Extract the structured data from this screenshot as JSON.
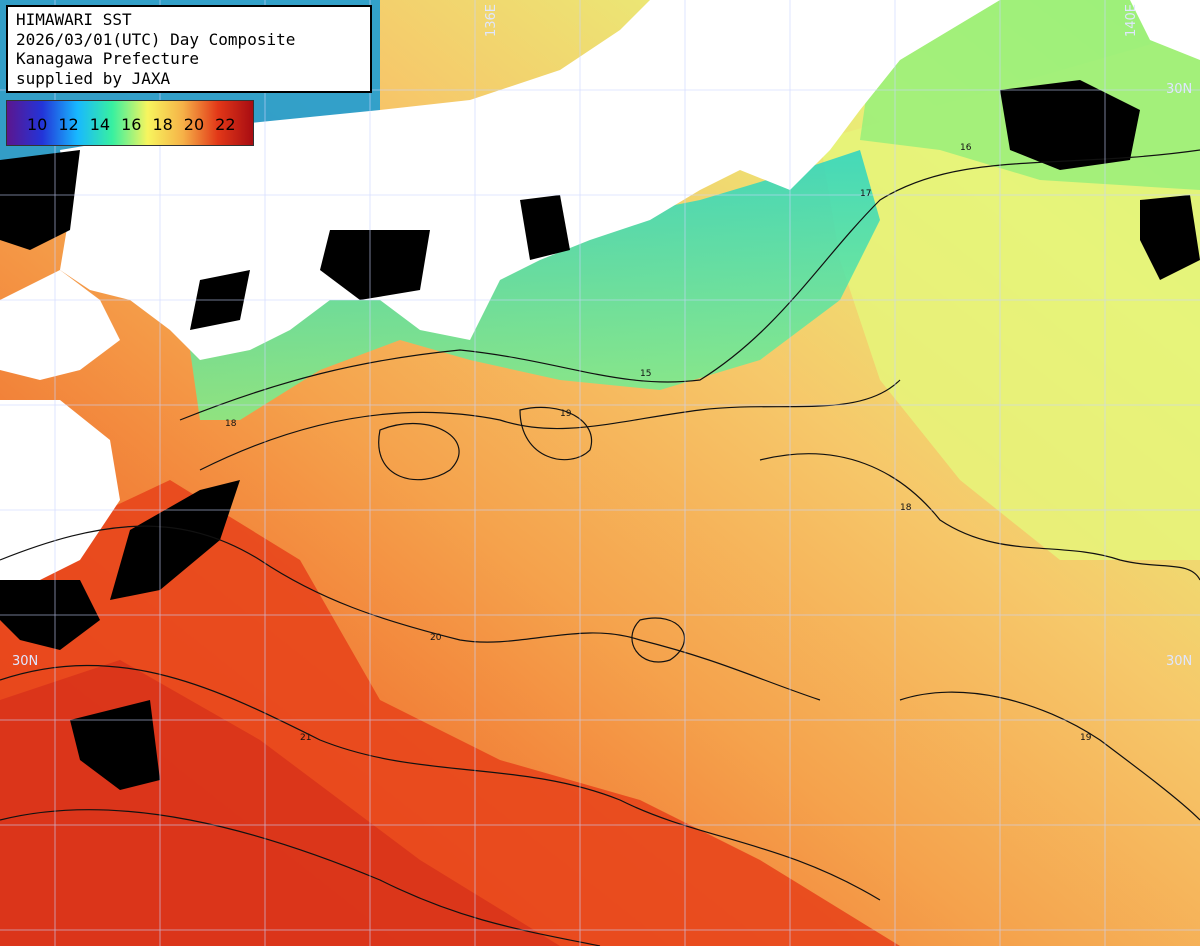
{
  "info": {
    "line1": "HIMAWARI SST",
    "line2": "2026/03/01(UTC) Day Composite",
    "line3": "Kanagawa Prefecture",
    "line4": "supplied by JAXA"
  },
  "legend": {
    "labels": [
      "10",
      "12",
      "14",
      "16",
      "18",
      "20",
      "22"
    ],
    "colors": [
      "#5b168f",
      "#2334d8",
      "#18b8ff",
      "#38f0a0",
      "#f7f55e",
      "#f6b248",
      "#e23818",
      "#a80c12"
    ]
  },
  "grid": {
    "lon_left": "136E",
    "lon_right": "140E",
    "lat_top": "30N",
    "lat_mid_left": "30N",
    "lat_mid_right": "30N"
  },
  "isotherms": [
    "15",
    "16",
    "17",
    "18",
    "19",
    "20",
    "21"
  ]
}
